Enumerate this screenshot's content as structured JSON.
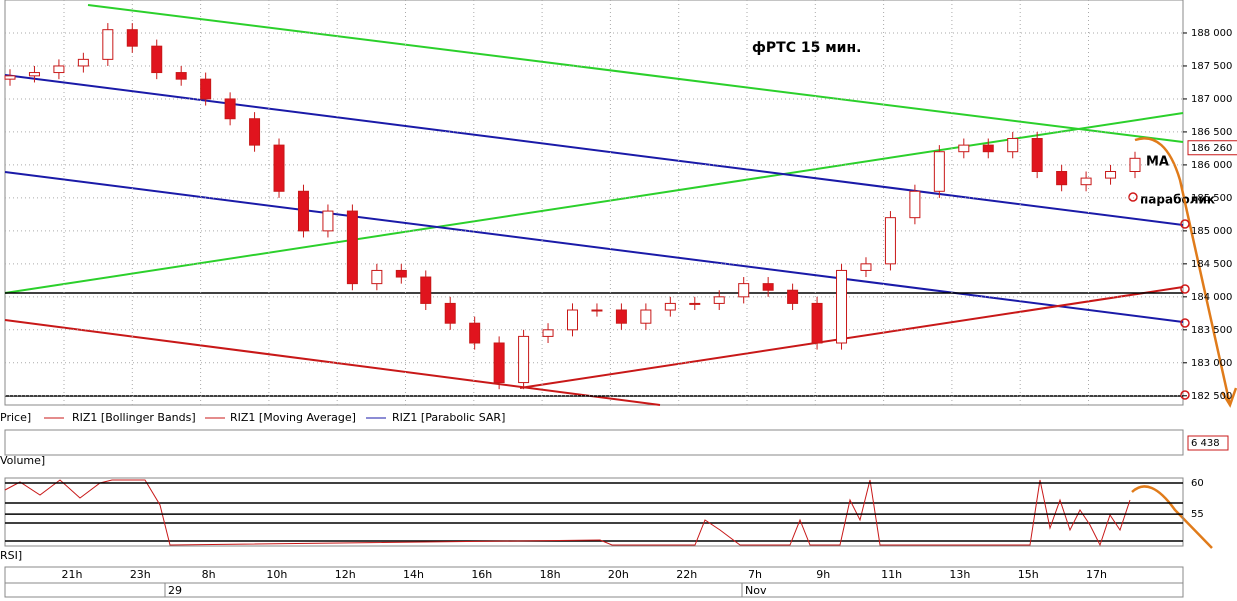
{
  "chart_data": {
    "type": "candlestick",
    "title": "фРТС     15 мин.",
    "annotations": [
      "MA",
      "параболик"
    ],
    "legend": [
      "Price]",
      "RIZ1 [Bollinger Bands]",
      "RIZ1 [Moving Average]",
      "RIZ1 [Parabolic SAR]"
    ],
    "open": [
      187300,
      187350,
      187400,
      187500,
      187600,
      188050,
      187800,
      187400,
      187300,
      187000,
      186700,
      186300,
      185600,
      185000,
      185300,
      184200,
      184400,
      184300,
      183900,
      183600,
      183300,
      182700,
      183400,
      183500,
      183800,
      183800,
      183600,
      183800,
      183900,
      183900,
      184000,
      184200,
      184100,
      183900,
      183300,
      184400,
      184500,
      185200,
      185600,
      186200,
      186300,
      186200,
      186400,
      185900,
      185700,
      185800,
      185900
    ],
    "high": [
      187450,
      187500,
      187600,
      187700,
      188150,
      188150,
      187900,
      187500,
      187400,
      187100,
      186800,
      186400,
      185700,
      185400,
      185400,
      184500,
      184500,
      184400,
      184000,
      183700,
      183400,
      183500,
      183600,
      183900,
      183900,
      183900,
      183900,
      184000,
      184000,
      184100,
      184300,
      184300,
      184200,
      184000,
      184500,
      184600,
      185300,
      185700,
      186300,
      186400,
      186400,
      186500,
      186500,
      186000,
      185900,
      186000,
      186200
    ],
    "low": [
      187200,
      187250,
      187300,
      187400,
      187500,
      187700,
      187300,
      187200,
      186900,
      186600,
      186200,
      185500,
      184900,
      184900,
      184100,
      184100,
      184200,
      183800,
      183500,
      183200,
      182600,
      182600,
      183300,
      183400,
      183700,
      183500,
      183500,
      183700,
      183800,
      183800,
      183900,
      184000,
      183800,
      183200,
      183200,
      184300,
      184400,
      185100,
      185500,
      186100,
      186100,
      186100,
      185800,
      185600,
      185600,
      185700,
      185800
    ],
    "close": [
      187350,
      187400,
      187500,
      187600,
      188050,
      187800,
      187400,
      187300,
      187000,
      186700,
      186300,
      185600,
      185000,
      185300,
      184200,
      184400,
      184300,
      183900,
      183600,
      183300,
      182700,
      183400,
      183500,
      183800,
      183800,
      183600,
      183800,
      183900,
      183900,
      184000,
      184200,
      184100,
      183900,
      183300,
      184400,
      184500,
      185200,
      185600,
      186200,
      186300,
      186200,
      186400,
      185900,
      185700,
      185800,
      185900,
      186100
    ],
    "up_color": "#ffffff",
    "down_color": "#e0141e",
    "ylim": [
      182360,
      188500
    ],
    "yticks": [
      {
        "value": 182500,
        "label": "182 500"
      },
      {
        "value": 183000,
        "label": "183 000"
      },
      {
        "value": 183500,
        "label": "183 500"
      },
      {
        "value": 184000,
        "label": "184 000"
      },
      {
        "value": 184500,
        "label": "184 500"
      },
      {
        "value": 185000,
        "label": "185 000"
      },
      {
        "value": 185500,
        "label": "185 500"
      },
      {
        "value": 186000,
        "label": "186 000"
      },
      {
        "value": 186500,
        "label": "186 500"
      },
      {
        "value": 187000,
        "label": "187 000"
      },
      {
        "value": 187500,
        "label": "187 500"
      },
      {
        "value": 188000,
        "label": "188 000"
      }
    ],
    "last_price": {
      "value": 186260,
      "label": "186 260"
    },
    "volume_panel": "Volume]",
    "last_volume": {
      "value": 6438,
      "label": "6 438"
    },
    "rsi_panel": "RSI]",
    "rsi_ylim": [
      49.9,
      60.8
    ],
    "rsi_yticks": [
      55,
      60
    ],
    "time_labels": [
      "21h",
      "23h",
      "8h",
      "10h",
      "12h",
      "14h",
      "16h",
      "18h",
      "20h",
      "22h",
      "7h",
      "9h",
      "11h",
      "13h",
      "15h",
      "17h"
    ],
    "date_labels": [
      "29",
      "Nov"
    ],
    "grid": true
  }
}
